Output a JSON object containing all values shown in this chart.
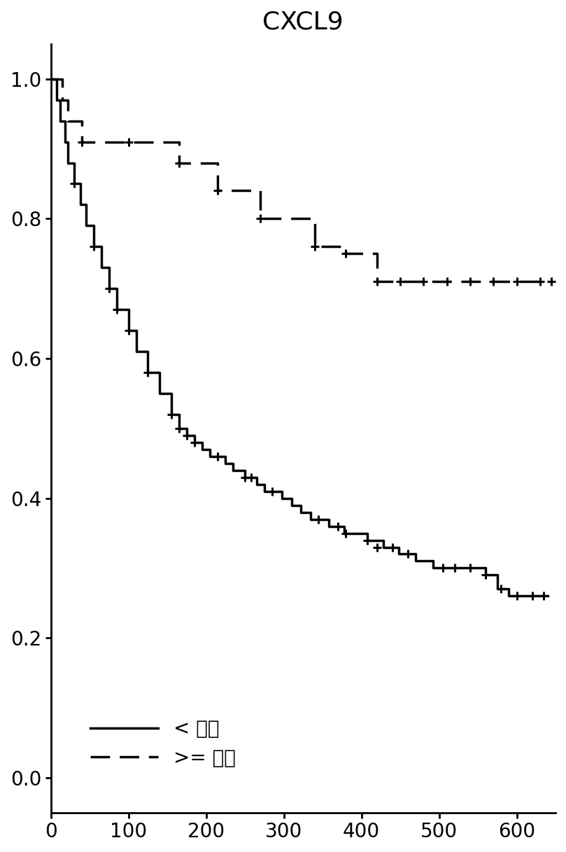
{
  "title": "CXCL9",
  "title_fontsize": 26,
  "xlim": [
    0,
    650
  ],
  "ylim": [
    -0.05,
    1.05
  ],
  "xticks": [
    0,
    100,
    200,
    300,
    400,
    500,
    600
  ],
  "yticks": [
    0.0,
    0.2,
    0.4,
    0.6,
    0.8,
    1.0
  ],
  "tick_fontsize": 20,
  "legend_fontsize": 20,
  "legend_labels": [
    "< 分割",
    ">= 分割"
  ],
  "background_color": "#ffffff",
  "line_color": "#000000",
  "solid_times": [
    0,
    8,
    12,
    18,
    22,
    30,
    38,
    45,
    55,
    65,
    75,
    85,
    100,
    110,
    125,
    140,
    155,
    165,
    175,
    185,
    195,
    205,
    215,
    225,
    235,
    250,
    258,
    265,
    275,
    285,
    298,
    310,
    322,
    335,
    345,
    358,
    368,
    378,
    388,
    398,
    408,
    418,
    428,
    438,
    448,
    460,
    470,
    480,
    492,
    505,
    520,
    535,
    548,
    560,
    575,
    590,
    600,
    640
  ],
  "solid_surv": [
    1.0,
    0.97,
    0.94,
    0.91,
    0.88,
    0.85,
    0.82,
    0.79,
    0.76,
    0.73,
    0.7,
    0.67,
    0.64,
    0.61,
    0.58,
    0.55,
    0.52,
    0.5,
    0.49,
    0.48,
    0.47,
    0.46,
    0.46,
    0.45,
    0.44,
    0.43,
    0.43,
    0.42,
    0.41,
    0.41,
    0.4,
    0.39,
    0.38,
    0.37,
    0.37,
    0.36,
    0.36,
    0.35,
    0.35,
    0.35,
    0.34,
    0.34,
    0.33,
    0.33,
    0.32,
    0.32,
    0.31,
    0.31,
    0.3,
    0.3,
    0.3,
    0.3,
    0.3,
    0.29,
    0.27,
    0.26,
    0.26,
    0.26
  ],
  "solid_censor_times": [
    30,
    55,
    75,
    85,
    100,
    125,
    155,
    165,
    175,
    185,
    215,
    250,
    258,
    285,
    345,
    370,
    380,
    408,
    420,
    440,
    460,
    505,
    520,
    540,
    560,
    580,
    600,
    620,
    635
  ],
  "solid_censor_surv": [
    0.85,
    0.76,
    0.7,
    0.67,
    0.64,
    0.58,
    0.52,
    0.5,
    0.49,
    0.48,
    0.46,
    0.43,
    0.43,
    0.41,
    0.37,
    0.36,
    0.35,
    0.34,
    0.33,
    0.33,
    0.32,
    0.3,
    0.3,
    0.3,
    0.29,
    0.27,
    0.26,
    0.26,
    0.26
  ],
  "dashed_times": [
    0,
    15,
    22,
    40,
    155,
    165,
    175,
    215,
    225,
    270,
    340,
    360,
    380,
    420,
    440,
    460,
    480,
    500,
    520,
    540,
    560,
    580,
    600,
    640
  ],
  "dashed_surv": [
    1.0,
    0.97,
    0.94,
    0.91,
    0.91,
    0.88,
    0.88,
    0.84,
    0.84,
    0.8,
    0.76,
    0.76,
    0.75,
    0.71,
    0.71,
    0.71,
    0.71,
    0.71,
    0.71,
    0.71,
    0.71,
    0.71,
    0.71,
    0.71
  ],
  "dashed_censor_times": [
    40,
    100,
    165,
    215,
    270,
    340,
    380,
    420,
    450,
    480,
    510,
    540,
    570,
    600,
    630,
    645
  ],
  "dashed_censor_surv": [
    0.91,
    0.91,
    0.88,
    0.84,
    0.8,
    0.76,
    0.75,
    0.71,
    0.71,
    0.71,
    0.71,
    0.71,
    0.71,
    0.71,
    0.71,
    0.71
  ]
}
